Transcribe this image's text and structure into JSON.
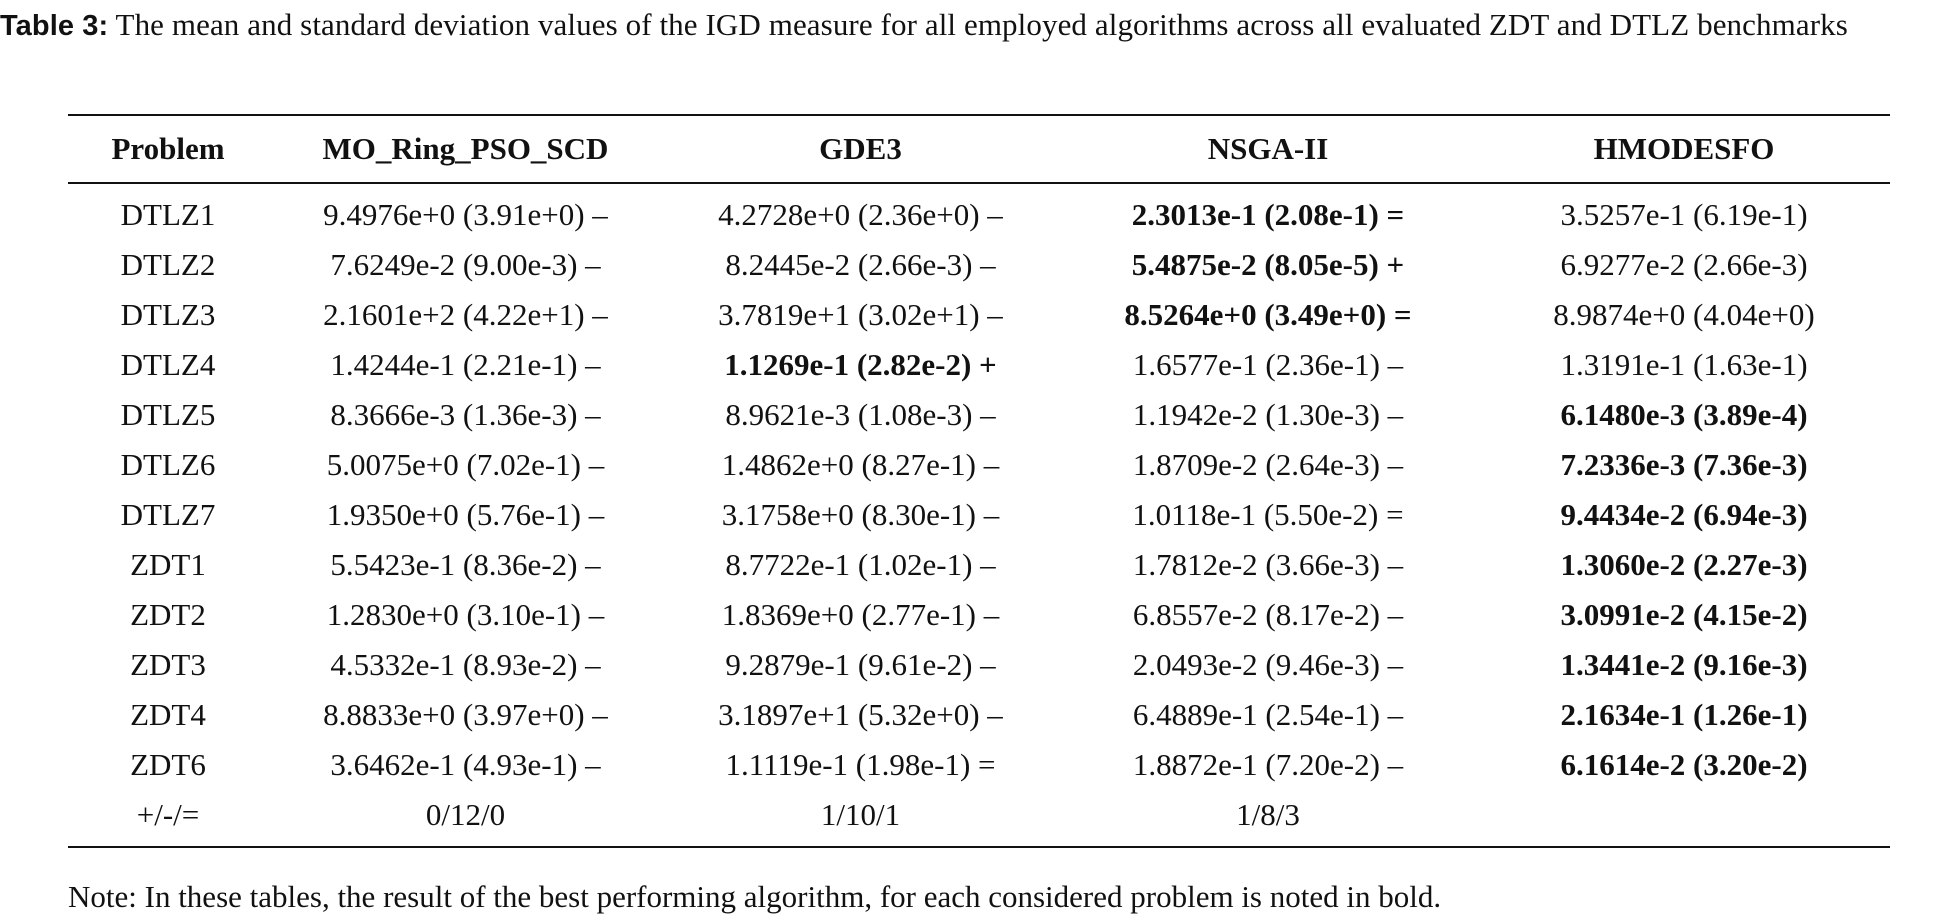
{
  "caption": {
    "label": "Table 3:",
    "text": "The mean and standard deviation values of the IGD measure for all employed algorithms across all evaluated ZDT and DTLZ benchmarks"
  },
  "table": {
    "headers": [
      "Problem",
      "MO_Ring_PSO_SCD",
      "GDE3",
      "NSGA-II",
      "HMODESFO"
    ],
    "rows": [
      {
        "problem": "DTLZ1",
        "cells": [
          "9.4976e+0 (3.91e+0) –",
          "4.2728e+0 (2.36e+0) –",
          "2.3013e-1 (2.08e-1) =",
          "3.5257e-1 (6.19e-1)"
        ],
        "bold": 2
      },
      {
        "problem": "DTLZ2",
        "cells": [
          "7.6249e-2 (9.00e-3) –",
          "8.2445e-2 (2.66e-3) –",
          "5.4875e-2 (8.05e-5) +",
          "6.9277e-2 (2.66e-3)"
        ],
        "bold": 2
      },
      {
        "problem": "DTLZ3",
        "cells": [
          "2.1601e+2 (4.22e+1) –",
          "3.7819e+1 (3.02e+1) –",
          "8.5264e+0 (3.49e+0) =",
          "8.9874e+0 (4.04e+0)"
        ],
        "bold": 2
      },
      {
        "problem": "DTLZ4",
        "cells": [
          "1.4244e-1 (2.21e-1) –",
          "1.1269e-1 (2.82e-2) +",
          "1.6577e-1 (2.36e-1) –",
          "1.3191e-1 (1.63e-1)"
        ],
        "bold": 1
      },
      {
        "problem": "DTLZ5",
        "cells": [
          "8.3666e-3 (1.36e-3) –",
          "8.9621e-3 (1.08e-3) –",
          "1.1942e-2 (1.30e-3) –",
          "6.1480e-3 (3.89e-4)"
        ],
        "bold": 3
      },
      {
        "problem": "DTLZ6",
        "cells": [
          "5.0075e+0 (7.02e-1) –",
          "1.4862e+0 (8.27e-1) –",
          "1.8709e-2 (2.64e-3) –",
          "7.2336e-3 (7.36e-3)"
        ],
        "bold": 3
      },
      {
        "problem": "DTLZ7",
        "cells": [
          "1.9350e+0 (5.76e-1) –",
          "3.1758e+0 (8.30e-1) –",
          "1.0118e-1 (5.50e-2) =",
          "9.4434e-2 (6.94e-3)"
        ],
        "bold": 3
      },
      {
        "problem": "ZDT1",
        "cells": [
          "5.5423e-1 (8.36e-2) –",
          "8.7722e-1 (1.02e-1) –",
          "1.7812e-2 (3.66e-3) –",
          "1.3060e-2 (2.27e-3)"
        ],
        "bold": 3
      },
      {
        "problem": "ZDT2",
        "cells": [
          "1.2830e+0 (3.10e-1) –",
          "1.8369e+0 (2.77e-1) –",
          "6.8557e-2 (8.17e-2) –",
          "3.0991e-2 (4.15e-2)"
        ],
        "bold": 3
      },
      {
        "problem": "ZDT3",
        "cells": [
          "4.5332e-1 (8.93e-2) –",
          "9.2879e-1 (9.61e-2) –",
          "2.0493e-2 (9.46e-3) –",
          "1.3441e-2 (9.16e-3)"
        ],
        "bold": 3
      },
      {
        "problem": "ZDT4",
        "cells": [
          "8.8833e+0 (3.97e+0) –",
          "3.1897e+1 (5.32e+0) –",
          "6.4889e-1 (2.54e-1) –",
          "2.1634e-1 (1.26e-1)"
        ],
        "bold": 3
      },
      {
        "problem": "ZDT6",
        "cells": [
          "3.6462e-1 (4.93e-1) –",
          "1.1119e-1 (1.98e-1) =",
          "1.8872e-1 (7.20e-2) –",
          "6.1614e-2 (3.20e-2)"
        ],
        "bold": 3
      },
      {
        "problem": "+/-/=",
        "cells": [
          "0/12/0",
          "1/10/1",
          "1/8/3",
          ""
        ],
        "bold": -1
      }
    ]
  },
  "note": "Note: In these tables, the result of the best performing algorithm, for each considered problem is noted in bold."
}
